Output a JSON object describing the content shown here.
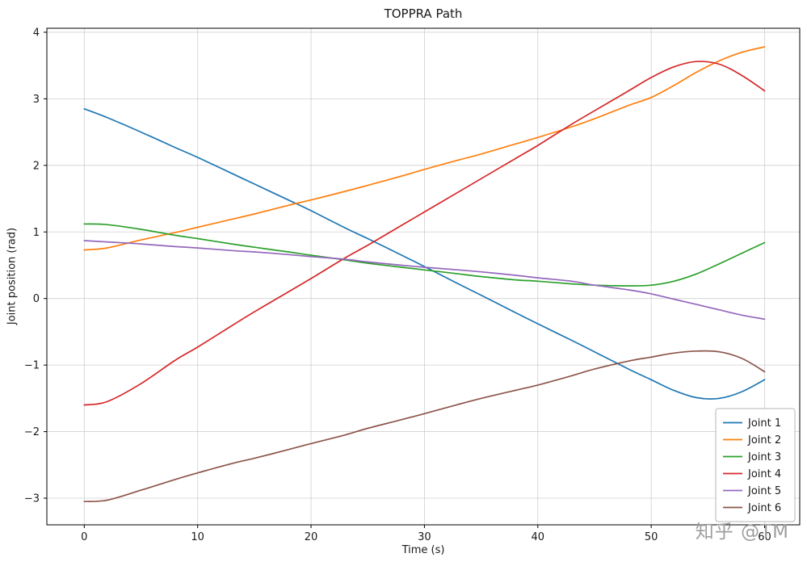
{
  "watermark": {
    "text": "知乎 @TM"
  },
  "chart_data": {
    "type": "line",
    "title": "TOPPRA Path",
    "xlabel": "Time (s)",
    "ylabel": "Joint position (rad)",
    "xlim": [
      -3.3,
      63.1
    ],
    "ylim": [
      -3.4,
      4.06
    ],
    "xticks": [
      0,
      10,
      20,
      30,
      40,
      50,
      60
    ],
    "yticks": [
      -3,
      -2,
      -1,
      0,
      1,
      2,
      3,
      4
    ],
    "grid": true,
    "legend_position": "lower right",
    "grid_color": "#d0d0d0",
    "x": [
      0,
      2,
      5,
      8,
      10,
      13,
      15,
      18,
      20,
      23,
      25,
      28,
      30,
      33,
      35,
      38,
      40,
      43,
      45,
      48,
      50,
      52,
      54,
      56,
      58,
      60
    ],
    "series": [
      {
        "name": "Joint 1",
        "color": "#1f77b4",
        "values": [
          2.85,
          2.72,
          2.5,
          2.27,
          2.12,
          1.88,
          1.72,
          1.48,
          1.32,
          1.06,
          0.9,
          0.65,
          0.48,
          0.22,
          0.05,
          -0.21,
          -0.38,
          -0.63,
          -0.8,
          -1.06,
          -1.22,
          -1.38,
          -1.49,
          -1.5,
          -1.4,
          -1.22
        ]
      },
      {
        "name": "Joint 2",
        "color": "#ff7f0e",
        "values": [
          0.73,
          0.76,
          0.88,
          0.99,
          1.07,
          1.19,
          1.27,
          1.4,
          1.48,
          1.61,
          1.7,
          1.84,
          1.94,
          2.08,
          2.17,
          2.32,
          2.42,
          2.58,
          2.7,
          2.9,
          3.02,
          3.2,
          3.4,
          3.57,
          3.7,
          3.78
        ]
      },
      {
        "name": "Joint 3",
        "color": "#2ca02c",
        "values": [
          1.12,
          1.11,
          1.04,
          0.95,
          0.9,
          0.82,
          0.77,
          0.7,
          0.65,
          0.58,
          0.53,
          0.47,
          0.43,
          0.37,
          0.33,
          0.28,
          0.26,
          0.22,
          0.2,
          0.19,
          0.2,
          0.26,
          0.37,
          0.52,
          0.68,
          0.84
        ]
      },
      {
        "name": "Joint 4",
        "color": "#d62728",
        "values": [
          -1.6,
          -1.55,
          -1.28,
          -0.93,
          -0.73,
          -0.41,
          -0.2,
          0.1,
          0.3,
          0.61,
          0.8,
          1.1,
          1.3,
          1.6,
          1.8,
          2.1,
          2.3,
          2.62,
          2.82,
          3.12,
          3.32,
          3.48,
          3.56,
          3.52,
          3.35,
          3.12
        ]
      },
      {
        "name": "Joint 5",
        "color": "#9467bd",
        "values": [
          0.87,
          0.85,
          0.82,
          0.78,
          0.76,
          0.72,
          0.7,
          0.66,
          0.63,
          0.59,
          0.55,
          0.5,
          0.47,
          0.43,
          0.4,
          0.35,
          0.31,
          0.26,
          0.2,
          0.13,
          0.07,
          -0.01,
          -0.09,
          -0.17,
          -0.25,
          -0.31
        ]
      },
      {
        "name": "Joint 6",
        "color": "#8c564b",
        "values": [
          -3.05,
          -3.03,
          -2.88,
          -2.72,
          -2.62,
          -2.48,
          -2.4,
          -2.27,
          -2.18,
          -2.05,
          -1.95,
          -1.82,
          -1.73,
          -1.59,
          -1.5,
          -1.38,
          -1.3,
          -1.16,
          -1.06,
          -0.94,
          -0.88,
          -0.82,
          -0.79,
          -0.8,
          -0.9,
          -1.1
        ]
      }
    ]
  }
}
